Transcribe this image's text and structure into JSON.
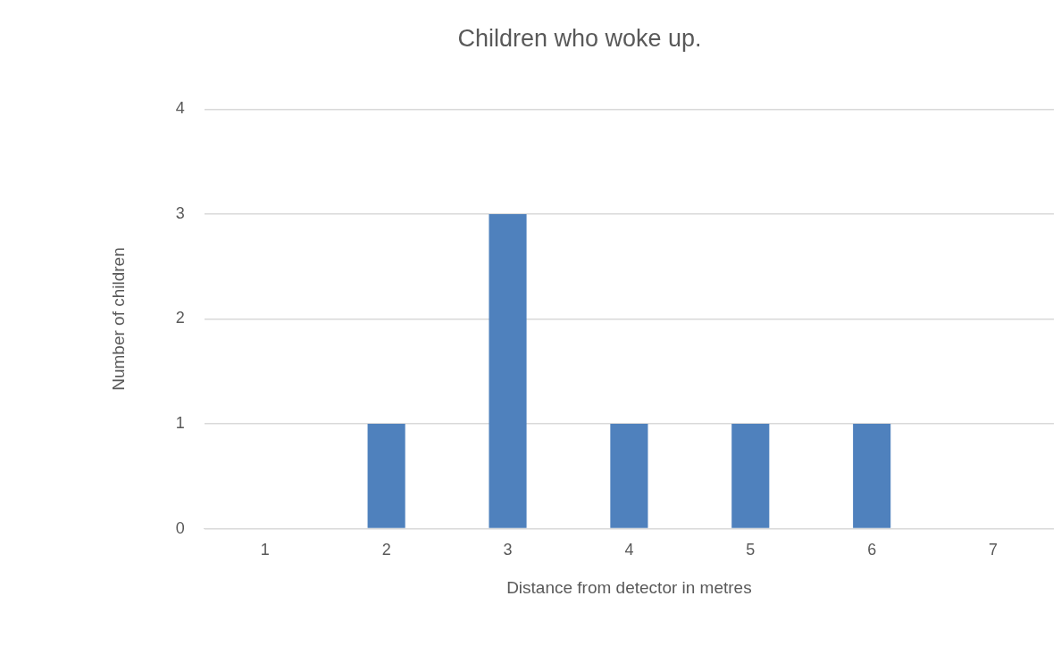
{
  "chart_data": {
    "type": "bar",
    "title": "Children who woke up.",
    "xlabel": "Distance from detector in metres",
    "ylabel": "Number of children",
    "categories": [
      "1",
      "2",
      "3",
      "4",
      "5",
      "6",
      "7"
    ],
    "values": [
      0,
      1,
      3,
      1,
      1,
      1,
      0
    ],
    "color": "#4f81bd",
    "ylim": [
      0,
      4
    ],
    "yticks": [
      0,
      1,
      2,
      3,
      4
    ],
    "grid": "y",
    "legend": false
  }
}
